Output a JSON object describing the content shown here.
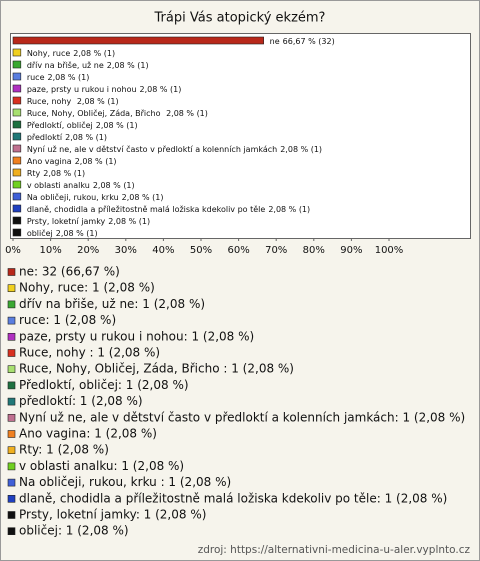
{
  "chart_data": {
    "type": "bar",
    "orientation": "horizontal",
    "title": "Trápi Vás atopický ekzém?",
    "categories": [
      "ne",
      "Nohy, ruce",
      "dřív na břiše, už ne",
      "ruce",
      "paze, prsty u rukou i nohou",
      "Ruce, nohy ",
      "Ruce, Nohy, Obličej, Záda, Břicho ",
      "Předloktí, obličej",
      "předloktí",
      "Nyní už ne, ale v dětství často v předloktí a kolenních jamkách",
      "Ano vagina",
      "Rty",
      "v oblasti analku",
      "Na obličeji, rukou, krku",
      "dlaně, chodidla a příležitostně malá ložiska kdekoliv po těle",
      "Prsty, loketní jamky",
      "obličej"
    ],
    "values": [
      66.67,
      2.08,
      2.08,
      2.08,
      2.08,
      2.08,
      2.08,
      2.08,
      2.08,
      2.08,
      2.08,
      2.08,
      2.08,
      2.08,
      2.08,
      2.08,
      2.08
    ],
    "value_labels": [
      "66,67 % (32)",
      "2,08 % (1)",
      "2,08 % (1)",
      "2,08 % (1)",
      "2,08 % (1)",
      "2,08 % (1)",
      "2,08 % (1)",
      "2,08 % (1)",
      "2,08 % (1)",
      "2,08 % (1)",
      "2,08 % (1)",
      "2,08 % (1)",
      "2,08 % (1)",
      "2,08 % (1)",
      "2,08 % (1)",
      "2,08 % (1)",
      "2,08 % (1)"
    ],
    "colors": [
      "#b8281a",
      "#f0d020",
      "#3aa832",
      "#5a7ee0",
      "#b030c0",
      "#d83020",
      "#a8e070",
      "#1e7040",
      "#207878",
      "#c07090",
      "#f08020",
      "#f0b020",
      "#70d020",
      "#4060d8",
      "#2040c0",
      "#101010",
      "#101010"
    ],
    "legend_labels": [
      "ne: 32 (66,67 %)",
      "Nohy, ruce: 1 (2,08 %)",
      "dřív na břiše, už ne: 1 (2,08 %)",
      "ruce: 1 (2,08 %)",
      "paze, prsty u rukou i nohou: 1 (2,08 %)",
      "Ruce, nohy : 1 (2,08 %)",
      "Ruce, Nohy, Obličej, Záda, Břicho : 1 (2,08 %)",
      "Předloktí, obličej: 1 (2,08 %)",
      "předloktí: 1 (2,08 %)",
      "Nyní už ne, ale v dětství často v předloktí a kolenních jamkách: 1 (2,08 %)",
      "Ano vagina: 1 (2,08 %)",
      "Rty: 1 (2,08 %)",
      "v oblasti analku: 1 (2,08 %)",
      "Na obličeji, rukou, krku : 1 (2,08 %)",
      "dlaně, chodidla a příležitostně malá ložiska kdekoliv po těle: 1 (2,08 %)",
      "Prsty, loketní jamky: 1 (2,08 %)",
      "obličej: 1 (2,08 %)"
    ],
    "xlim": [
      0,
      100
    ],
    "xticks": [
      {
        "value": 0,
        "label": "0%"
      },
      {
        "value": 10,
        "label": "10%"
      },
      {
        "value": 20,
        "label": "20%"
      },
      {
        "value": 30,
        "label": "30%"
      },
      {
        "value": 40,
        "label": "40%"
      },
      {
        "value": 50,
        "label": "50%"
      },
      {
        "value": 60,
        "label": "60%"
      },
      {
        "value": 70,
        "label": "70%"
      },
      {
        "value": 80,
        "label": "80%"
      },
      {
        "value": 90,
        "label": "90%"
      },
      {
        "value": 100,
        "label": "100%"
      }
    ],
    "source": "zdroj: https://alternativni-medicina-u-aler.vyplnto.cz"
  }
}
